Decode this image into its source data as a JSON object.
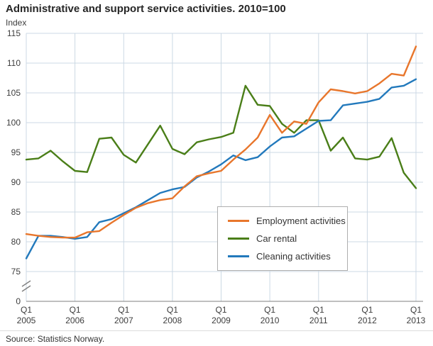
{
  "chart_data": {
    "type": "line",
    "title": "Administrative and support service activities. 2010=100",
    "ylabel": "Index",
    "source": "Source: Statistics Norway.",
    "ylim": [
      75,
      115
    ],
    "y_ticks": [
      115,
      110,
      105,
      100,
      95,
      90,
      85,
      80,
      75
    ],
    "y_axis_break_to_zero": true,
    "zero_label": "0",
    "x_tick_quarter_label": "Q1",
    "x_tick_years": [
      "2005",
      "2006",
      "2007",
      "2008",
      "2009",
      "2010",
      "2011",
      "2012",
      "2013"
    ],
    "x_frequency": "quarterly",
    "x_range": "2005Q1 to 2013Q1",
    "grid": true,
    "legend_position": "boxed, center-right inside plot",
    "colors": {
      "grid": "#ccd9e4",
      "axis": "#7f7f7f",
      "text": "#3d3d3d",
      "title": "#262626"
    },
    "series": [
      {
        "name": "Employment activities",
        "color": "#e8762c",
        "values": [
          81.3,
          81.0,
          80.8,
          80.7,
          80.7,
          81.6,
          81.8,
          83.2,
          84.5,
          85.7,
          86.5,
          87.0,
          87.3,
          89.3,
          91.0,
          91.5,
          91.9,
          93.8,
          95.5,
          97.5,
          101.3,
          98.3,
          100.2,
          99.8,
          103.4,
          105.6,
          105.3,
          104.9,
          105.3,
          106.6,
          108.2,
          107.9,
          112.8
        ]
      },
      {
        "name": "Car rental",
        "color": "#4a7e18",
        "values": [
          93.8,
          94.0,
          95.3,
          93.5,
          91.9,
          91.7,
          97.3,
          97.5,
          94.6,
          93.3,
          96.4,
          99.5,
          95.6,
          94.7,
          96.7,
          97.2,
          97.6,
          98.3,
          106.2,
          103.0,
          102.8,
          99.8,
          98.3,
          100.4,
          100.4,
          95.3,
          97.5,
          94.0,
          93.8,
          94.3,
          97.4,
          91.6,
          89.0
        ]
      },
      {
        "name": "Cleaning activities",
        "color": "#2279bc",
        "values": [
          77.2,
          81.0,
          81.0,
          80.8,
          80.5,
          80.8,
          83.3,
          83.8,
          84.8,
          85.8,
          87.0,
          88.2,
          88.8,
          89.2,
          90.8,
          91.8,
          93.0,
          94.5,
          93.7,
          94.2,
          96.0,
          97.5,
          97.7,
          99.0,
          100.3,
          100.4,
          102.9,
          103.2,
          103.5,
          104.0,
          105.9,
          106.2,
          107.3
        ]
      }
    ]
  }
}
